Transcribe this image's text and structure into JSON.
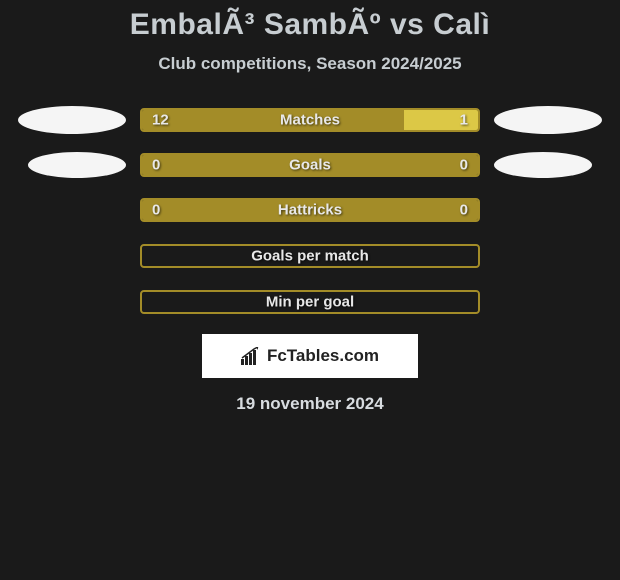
{
  "title": "EmbalÃ³ SambÃº vs Calì",
  "subtitle": "Club competitions, Season 2024/2025",
  "date": "19 november 2024",
  "logo_text": "FcTables.com",
  "colors": {
    "background": "#1a1a1a",
    "text": "#c7cdd1",
    "bar_left": "#a38c28",
    "bar_right": "#dcc846",
    "border": "#a38c28",
    "ellipse": "#f5f5f5"
  },
  "stats": [
    {
      "label": "Matches",
      "left_val": "12",
      "right_val": "1",
      "left_pct": 78,
      "right_pct": 22,
      "has_ellipses": true,
      "ellipse_variant": 1
    },
    {
      "label": "Goals",
      "left_val": "0",
      "right_val": "0",
      "left_pct": 100,
      "right_pct": 0,
      "has_ellipses": true,
      "ellipse_variant": 2
    },
    {
      "label": "Hattricks",
      "left_val": "0",
      "right_val": "0",
      "left_pct": 100,
      "right_pct": 0,
      "has_ellipses": false
    },
    {
      "label": "Goals per match",
      "left_val": "",
      "right_val": "",
      "left_pct": 0,
      "right_pct": 0,
      "has_ellipses": false,
      "empty": true
    },
    {
      "label": "Min per goal",
      "left_val": "",
      "right_val": "",
      "left_pct": 0,
      "right_pct": 0,
      "has_ellipses": false,
      "empty": true
    }
  ]
}
